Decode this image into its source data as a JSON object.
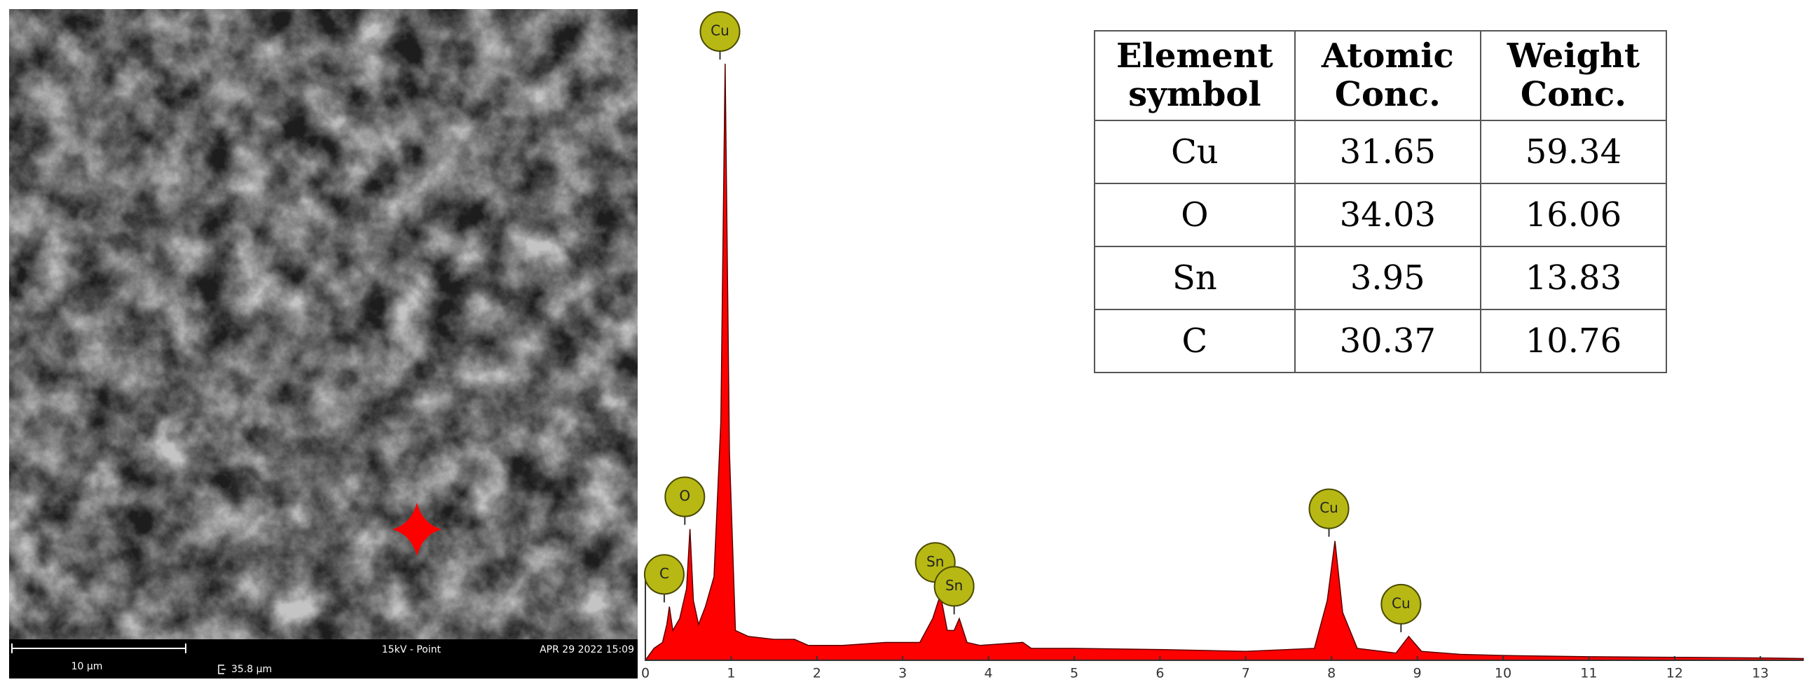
{
  "image": {
    "scale_label": "10 µm",
    "mode": "15kV - Point",
    "date": "APR 29 2022 15:09",
    "field": "35.8 µm"
  },
  "chart_data": {
    "type": "area",
    "color": "#ff0000",
    "x": [
      0,
      0.1,
      0.2,
      0.25,
      0.28,
      0.32,
      0.4,
      0.48,
      0.52,
      0.56,
      0.62,
      0.7,
      0.8,
      0.88,
      0.93,
      0.98,
      1.05,
      1.2,
      1.5,
      1.74,
      1.9,
      2.3,
      2.8,
      3.2,
      3.35,
      3.44,
      3.52,
      3.6,
      3.66,
      3.75,
      3.9,
      4.4,
      4.5,
      5,
      6,
      7,
      7.8,
      7.95,
      8.04,
      8.13,
      8.3,
      8.75,
      8.9,
      9.05,
      9.5,
      10,
      11,
      12,
      13,
      13.5
    ],
    "values": [
      0,
      2,
      3,
      6,
      9,
      5,
      7,
      12,
      22,
      10,
      6,
      9,
      14,
      40,
      100,
      35,
      5,
      4,
      3.5,
      3.5,
      2.5,
      2.5,
      3,
      3,
      7,
      11,
      5,
      5,
      7,
      3,
      2.5,
      3,
      2,
      2,
      1.8,
      1.5,
      2,
      10,
      20,
      8,
      2,
      1.2,
      4,
      1.5,
      1,
      0.8,
      0.6,
      0.5,
      0.4,
      0.3
    ],
    "xlim": [
      0,
      13.5
    ],
    "ylim": [
      0,
      100
    ],
    "xticks": [
      0,
      1,
      2,
      3,
      4,
      5,
      6,
      7,
      8,
      9,
      10,
      11,
      12,
      13
    ],
    "annotations": [
      {
        "label": "C",
        "x": 0.22,
        "y": 9
      },
      {
        "label": "O",
        "x": 0.46,
        "y": 22
      },
      {
        "label": "Cu",
        "x": 0.87,
        "y": 100
      },
      {
        "label": "Sn",
        "x": 3.38,
        "y": 11
      },
      {
        "label": "Sn",
        "x": 3.6,
        "y": 7
      },
      {
        "label": "Cu",
        "x": 7.97,
        "y": 20
      },
      {
        "label": "Cu",
        "x": 8.81,
        "y": 4
      }
    ]
  },
  "table": {
    "header": [
      "Element symbol",
      "Atomic Conc.",
      "Weight Conc."
    ],
    "rows": [
      [
        "Cu",
        31.65,
        59.34
      ],
      [
        "O",
        34.03,
        16.06
      ],
      [
        "Sn",
        3.95,
        13.83
      ],
      [
        "C",
        30.37,
        10.76
      ]
    ]
  }
}
